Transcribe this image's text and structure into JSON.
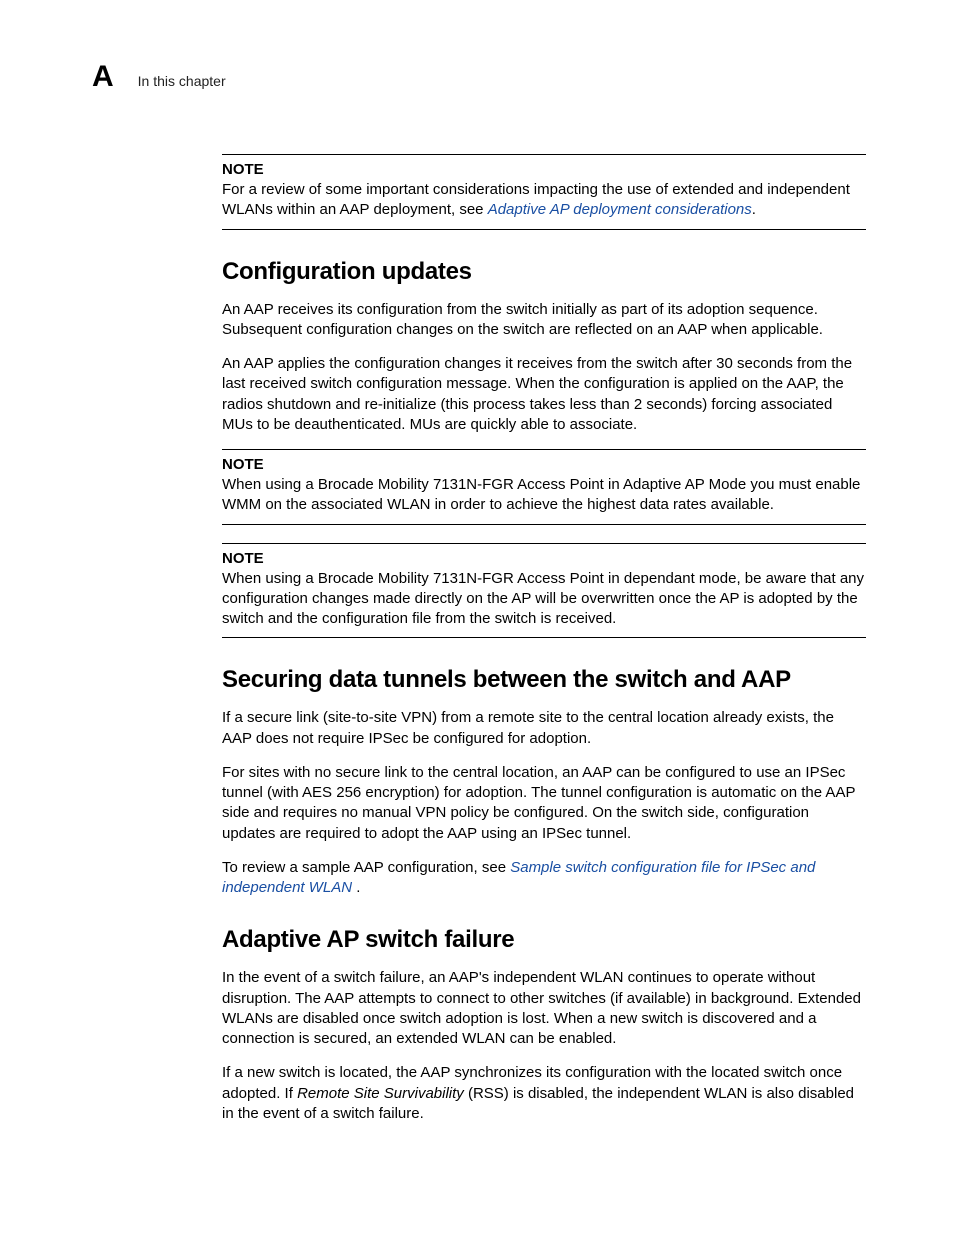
{
  "header": {
    "appendix_letter": "A",
    "running_text": "In this chapter"
  },
  "note1": {
    "label": "NOTE",
    "text_before_link": "For a review of some important considerations impacting the use of extended and independent WLANs within an AAP deployment, see ",
    "link_text": "Adaptive AP deployment considerations",
    "text_after_link": "."
  },
  "section1": {
    "heading": "Configuration updates",
    "para1": "An AAP receives its configuration from the switch initially as part of its adoption sequence. Subsequent configuration changes on the switch are reflected on an AAP when applicable.",
    "para2": "An AAP applies the configuration changes it receives from the switch after 30 seconds from the last received switch configuration message. When the configuration is applied on the AAP, the radios shutdown and re-initialize (this process takes less than 2 seconds) forcing associated MUs to be deauthenticated. MUs are quickly able to associate."
  },
  "note2": {
    "label": "NOTE",
    "text": "When using a Brocade Mobility 7131N-FGR Access Point in Adaptive AP Mode you must enable WMM on the associated WLAN in order to achieve the highest data rates available."
  },
  "note3": {
    "label": "NOTE",
    "text": "When using a Brocade Mobility 7131N-FGR Access Point in dependant mode, be aware that any configuration changes made directly on the AP will be overwritten once the AP is adopted by the switch and the configuration file from the switch is received."
  },
  "section2": {
    "heading": "Securing data tunnels between the switch and AAP",
    "para1": "If a secure link (site-to-site VPN) from a remote site to the central location already exists, the AAP does not require IPSec be configured for adoption.",
    "para2": "For sites with no secure link to the central location, an AAP can be configured to use an IPSec tunnel (with AES 256 encryption) for adoption. The tunnel configuration is automatic on the AAP side and requires no manual VPN policy be configured. On the switch side, configuration updates are required to adopt the AAP using an IPSec tunnel.",
    "para3_before_link": "To review a sample AAP configuration, see ",
    "para3_link": "Sample switch configuration file for IPSec and independent WLAN ",
    "para3_after_link": "."
  },
  "section3": {
    "heading": "Adaptive AP switch failure",
    "para1": "In the event of a switch failure, an AAP's independent WLAN continues to operate without disruption. The AAP attempts to connect to other switches (if available) in background. Extended WLANs are disabled once switch adoption is lost. When a new switch is discovered and a connection is secured, an extended WLAN can be enabled.",
    "para2_before_italic": "If a new switch is located, the AAP synchronizes its configuration with the located switch once adopted. If ",
    "para2_italic": "Remote Site Survivability",
    "para2_after_italic": " (RSS) is disabled, the independent WLAN is also disabled in the event of a switch failure."
  },
  "colors": {
    "text": "#000000",
    "link": "#1a4fa3",
    "background": "#ffffff",
    "rule": "#000000"
  },
  "fonts": {
    "heading_size_pt": 18,
    "body_size_pt": 11,
    "appendix_letter_size_pt": 22
  }
}
